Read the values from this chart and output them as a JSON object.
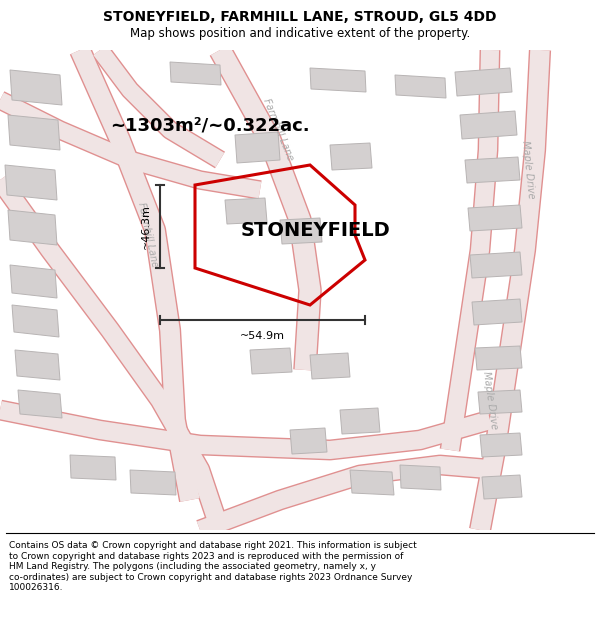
{
  "title": "STONEYFIELD, FARMHILL LANE, STROUD, GL5 4DD",
  "subtitle": "Map shows position and indicative extent of the property.",
  "footer": "Contains OS data © Crown copyright and database right 2021. This information is subject\nto Crown copyright and database rights 2023 and is reproduced with the permission of\nHM Land Registry. The polygons (including the associated geometry, namely x, y\nco-ordinates) are subject to Crown copyright and database rights 2023 Ordnance Survey\n100026316.",
  "area_label": "~1303m²/~0.322ac.",
  "property_name": "STONEYFIELD",
  "width_label": "~54.9m",
  "height_label": "~46.3m",
  "property_color": "#cc0000",
  "dim_line_color": "#333333",
  "road_label_color": "#aaaaaa",
  "map_bg": "#f7f2f2",
  "building_face": "#d4d0d0",
  "building_edge": "#b8b4b4",
  "road_fill": "#f0e4e4",
  "road_edge": "#e09090",
  "title_fontsize": 10,
  "subtitle_fontsize": 8.5,
  "footer_fontsize": 6.5,
  "area_fontsize": 13,
  "prop_name_fontsize": 14,
  "dim_fontsize": 8
}
